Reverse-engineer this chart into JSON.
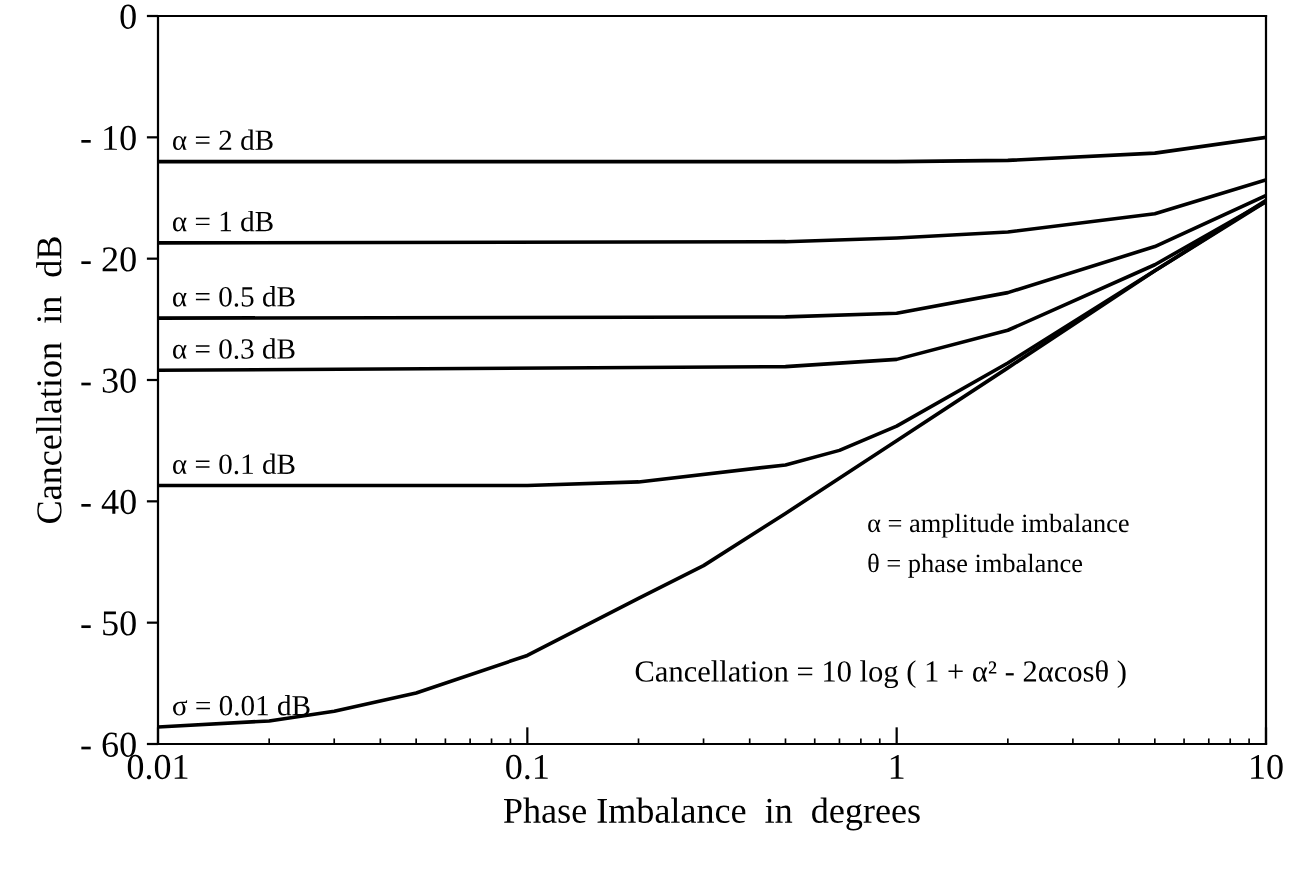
{
  "chart_data": {
    "type": "line",
    "xlabel": "Phase Imbalance  in  degrees",
    "ylabel": "Cancellation  in  dB",
    "log": "x",
    "xlim": [
      0.01,
      10
    ],
    "ylim": [
      -60,
      0
    ],
    "xticks": [
      {
        "value": 0.01,
        "label": "0.01"
      },
      {
        "value": 0.1,
        "label": "0.1"
      },
      {
        "value": 1,
        "label": "1"
      },
      {
        "value": 10,
        "label": "10"
      }
    ],
    "yticks": [
      {
        "value": 0,
        "label": "0"
      },
      {
        "value": -10,
        "label": "- 10"
      },
      {
        "value": -20,
        "label": "- 20"
      },
      {
        "value": -30,
        "label": "- 30"
      },
      {
        "value": -40,
        "label": "- 40"
      },
      {
        "value": -50,
        "label": "- 50"
      },
      {
        "value": -60,
        "label": "- 60"
      }
    ],
    "grid": false,
    "legend": false,
    "marker": "none",
    "line_style": "solid",
    "series": [
      {
        "name": "α = 2 dB",
        "color": "#000000",
        "x": [
          0.01,
          1,
          2,
          5,
          10
        ],
        "values": [
          -12,
          -12,
          -11.9,
          -11.3,
          -10
        ]
      },
      {
        "name": "α = 1 dB",
        "color": "#000000",
        "x": [
          0.01,
          0.5,
          1,
          2,
          5,
          10
        ],
        "values": [
          -18.7,
          -18.6,
          -18.3,
          -17.8,
          -16.3,
          -13.5
        ]
      },
      {
        "name": "α = 0.5 dB",
        "color": "#000000",
        "x": [
          0.01,
          0.5,
          1,
          2,
          5,
          10
        ],
        "values": [
          -24.9,
          -24.8,
          -24.5,
          -22.8,
          -19,
          -14.8
        ]
      },
      {
        "name": "α = 0.3 dB",
        "color": "#000000",
        "x": [
          0.01,
          0.5,
          1,
          2,
          5,
          10
        ],
        "values": [
          -29.2,
          -28.9,
          -28.3,
          -25.9,
          -20.5,
          -15.3
        ]
      },
      {
        "name": "α = 0.1 dB",
        "color": "#000000",
        "x": [
          0.01,
          0.1,
          0.2,
          0.5,
          0.7,
          1,
          2,
          5,
          10
        ],
        "values": [
          -38.7,
          -38.7,
          -38.4,
          -37,
          -35.8,
          -33.8,
          -28.6,
          -21,
          -15.2
        ]
      },
      {
        "name": "σ = 0.01 dB",
        "color": "#000000",
        "x": [
          0.01,
          0.02,
          0.03,
          0.05,
          0.1,
          0.2,
          0.3,
          0.5,
          1,
          2,
          5,
          10
        ],
        "values": [
          -58.6,
          -58.1,
          -57.3,
          -55.8,
          -52.7,
          -48,
          -45.3,
          -41,
          -35,
          -29,
          -21,
          -15.3
        ]
      }
    ],
    "annotations": [
      "α = amplitude imbalance",
      "θ = phase imbalance",
      "Cancellation = 10 log ( 1 + α² - 2αcosθ )"
    ]
  }
}
